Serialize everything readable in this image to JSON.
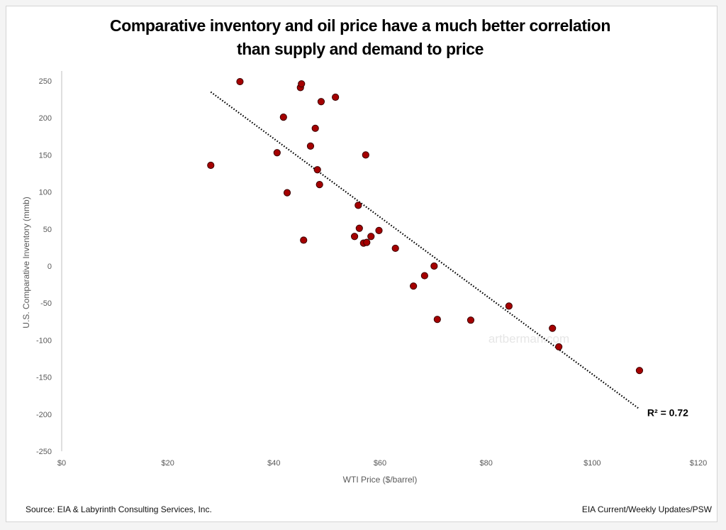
{
  "chart_data": {
    "type": "scatter",
    "title": [
      "Comparative inventory and oil price have a much better correlation",
      "than supply and demand to price"
    ],
    "xlabel": "WTI Price ($/barrel)",
    "ylabel": "U.S. Comparative Inventory (mmb)",
    "xlim": [
      0,
      120
    ],
    "ylim": [
      -250,
      250
    ],
    "x_ticks": [
      0,
      20,
      40,
      60,
      80,
      100,
      120
    ],
    "x_tick_labels": [
      "$0",
      "$20",
      "$40",
      "$60",
      "$80",
      "$100",
      "$120"
    ],
    "y_ticks": [
      250,
      200,
      150,
      100,
      50,
      0,
      -50,
      -100,
      -150,
      -200,
      -250
    ],
    "y_tick_labels": [
      "250",
      "200",
      "150",
      "100",
      "50",
      "0",
      "-50",
      "-100",
      "-150",
      "-200",
      "-250"
    ],
    "grid": false,
    "marker_color": "#a50000",
    "marker_edge_color": "#3a0000",
    "points": [
      {
        "x": 28.1,
        "y": 136
      },
      {
        "x": 33.6,
        "y": 249
      },
      {
        "x": 41.8,
        "y": 201
      },
      {
        "x": 40.6,
        "y": 153
      },
      {
        "x": 42.5,
        "y": 99
      },
      {
        "x": 45.6,
        "y": 35
      },
      {
        "x": 45.0,
        "y": 241
      },
      {
        "x": 45.2,
        "y": 246
      },
      {
        "x": 48.9,
        "y": 222
      },
      {
        "x": 51.6,
        "y": 228
      },
      {
        "x": 47.8,
        "y": 186
      },
      {
        "x": 46.9,
        "y": 162
      },
      {
        "x": 48.2,
        "y": 130
      },
      {
        "x": 48.6,
        "y": 110
      },
      {
        "x": 57.3,
        "y": 150
      },
      {
        "x": 55.9,
        "y": 82
      },
      {
        "x": 56.1,
        "y": 51
      },
      {
        "x": 55.2,
        "y": 40
      },
      {
        "x": 58.3,
        "y": 40
      },
      {
        "x": 59.8,
        "y": 48
      },
      {
        "x": 56.9,
        "y": 31
      },
      {
        "x": 57.5,
        "y": 32
      },
      {
        "x": 62.9,
        "y": 24
      },
      {
        "x": 70.2,
        "y": 0
      },
      {
        "x": 68.4,
        "y": -13
      },
      {
        "x": 66.3,
        "y": -27
      },
      {
        "x": 70.8,
        "y": -72
      },
      {
        "x": 77.1,
        "y": -73
      },
      {
        "x": 84.3,
        "y": -54
      },
      {
        "x": 92.5,
        "y": -84
      },
      {
        "x": 93.7,
        "y": -109
      },
      {
        "x": 108.9,
        "y": -141
      }
    ],
    "trendline": {
      "type": "linear",
      "x_start": 28.1,
      "y_start": 235,
      "x_end": 108.9,
      "y_end": -193,
      "style": "dotted",
      "color": "#000000"
    },
    "annotations": [
      {
        "text": "R² = 0.72",
        "anchor": "trendline-end"
      },
      {
        "text": "artberman.com",
        "type": "watermark"
      }
    ]
  },
  "footer": {
    "source": "Source: EIA & Labyrinth Consulting Services, Inc.",
    "credit": "EIA Current/Weekly Updates/PSW"
  }
}
